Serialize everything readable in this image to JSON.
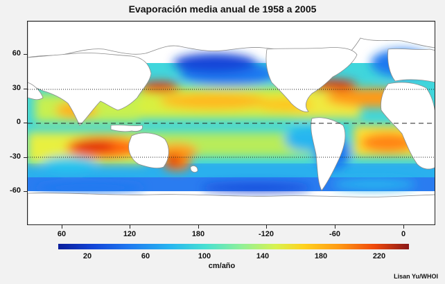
{
  "title": "Evaporación media anual de 1958 a 2005",
  "y_ticks": [
    "60",
    "30",
    "0",
    "-30",
    "-60"
  ],
  "x_ticks": [
    "60",
    "120",
    "180",
    "-120",
    "-60",
    "0"
  ],
  "colorbar": {
    "labels": [
      "20",
      "60",
      "100",
      "140",
      "180",
      "220"
    ],
    "unit": "cm/año"
  },
  "credit": "Lisan Yu/WHOI"
}
